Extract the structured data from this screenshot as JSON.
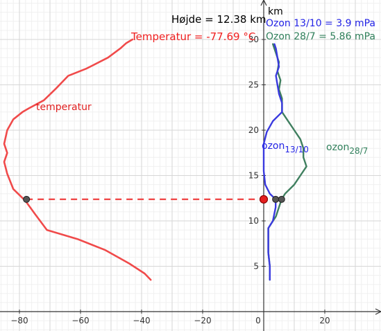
{
  "graphics_view": {
    "axis_unit_label": "km",
    "readouts": {
      "height_text": "Højde = 12.38 km",
      "temperature_text": "Temperatur = -77.69 °C",
      "ozone_oct_text": "Ozon 13/10 = 3.9 mPa",
      "ozone_jul_text": "Ozon 28/7 = 5.86 mPa"
    },
    "curve_labels": {
      "temperature": "temperatur",
      "ozone_oct_main": "ozon",
      "ozone_oct_sub": "13/10",
      "ozone_jul_main": "ozon",
      "ozone_jul_sub": "28/7"
    },
    "colors": {
      "temperature": "#f04a4a",
      "ozone_oct": "#3a3adf",
      "ozone_jul": "#3f7f5f",
      "point_red": "#e41e1e",
      "point_gray": "#555555"
    }
  },
  "chart_data": {
    "type": "line",
    "xlim": [
      -87,
      38
    ],
    "ylim": [
      -2,
      32
    ],
    "x_ticks": [
      -80,
      -60,
      -40,
      -20,
      0,
      20
    ],
    "y_ticks": [
      5,
      10,
      15,
      20,
      25,
      30
    ],
    "grid": true,
    "current_height_km": 12.38,
    "current_temperature_c": -77.69,
    "current_ozone_oct": 3.9,
    "current_ozone_jul": 5.86,
    "series": [
      {
        "name": "temperatur",
        "points": [
          [
            -37,
            3.5
          ],
          [
            -39,
            4.2
          ],
          [
            -44,
            5.3
          ],
          [
            -52,
            6.8
          ],
          [
            -61,
            8.0
          ],
          [
            -71,
            9.0
          ],
          [
            -75,
            10.8
          ],
          [
            -78,
            12.2
          ],
          [
            -82,
            13.5
          ],
          [
            -84,
            15.2
          ],
          [
            -85,
            16.5
          ],
          [
            -84,
            17.5
          ],
          [
            -85,
            18.5
          ],
          [
            -84,
            20.0
          ],
          [
            -82,
            21.2
          ],
          [
            -79,
            22.0
          ],
          [
            -77,
            22.4
          ],
          [
            -72,
            23.3
          ],
          [
            -68,
            24.6
          ],
          [
            -64,
            26.0
          ],
          [
            -58,
            26.8
          ],
          [
            -51,
            28.0
          ],
          [
            -47,
            29.0
          ],
          [
            -45,
            29.6
          ],
          [
            -43,
            30.0
          ]
        ]
      },
      {
        "name": "ozon 13/10",
        "points": [
          [
            2,
            3.5
          ],
          [
            2,
            5.0
          ],
          [
            1.5,
            6.5
          ],
          [
            1.5,
            8.0
          ],
          [
            1.5,
            9.2
          ],
          [
            3,
            10.0
          ],
          [
            3.9,
            11.5
          ],
          [
            3.9,
            12.38
          ],
          [
            2,
            13.0
          ],
          [
            0.5,
            14.0
          ],
          [
            0,
            15.5
          ],
          [
            0,
            17.0
          ],
          [
            0,
            18.5
          ],
          [
            1,
            19.8
          ],
          [
            3,
            21.0
          ],
          [
            6,
            22.0
          ],
          [
            6,
            23.0
          ],
          [
            5,
            24.0
          ],
          [
            4.5,
            25.0
          ],
          [
            4,
            26.0
          ],
          [
            5,
            27.0
          ],
          [
            4.5,
            28.0
          ],
          [
            4,
            29.0
          ],
          [
            3.5,
            29.5
          ]
        ]
      },
      {
        "name": "ozon 28/7",
        "points": [
          [
            2,
            3.5
          ],
          [
            2,
            5.0
          ],
          [
            1.5,
            6.5
          ],
          [
            1.5,
            8.0
          ],
          [
            1.5,
            9.2
          ],
          [
            4,
            10.5
          ],
          [
            5.86,
            12.38
          ],
          [
            7,
            13.0
          ],
          [
            10,
            14.0
          ],
          [
            12,
            15.0
          ],
          [
            14,
            16.0
          ],
          [
            13,
            17.0
          ],
          [
            13,
            18.0
          ],
          [
            12,
            19.0
          ],
          [
            10,
            20.0
          ],
          [
            8,
            21.0
          ],
          [
            6,
            22.0
          ],
          [
            6,
            23.5
          ],
          [
            5,
            24.5
          ],
          [
            5.5,
            25.5
          ],
          [
            4.5,
            26.5
          ],
          [
            5,
            27.5
          ],
          [
            4,
            28.5
          ],
          [
            3,
            29.5
          ]
        ]
      }
    ]
  }
}
